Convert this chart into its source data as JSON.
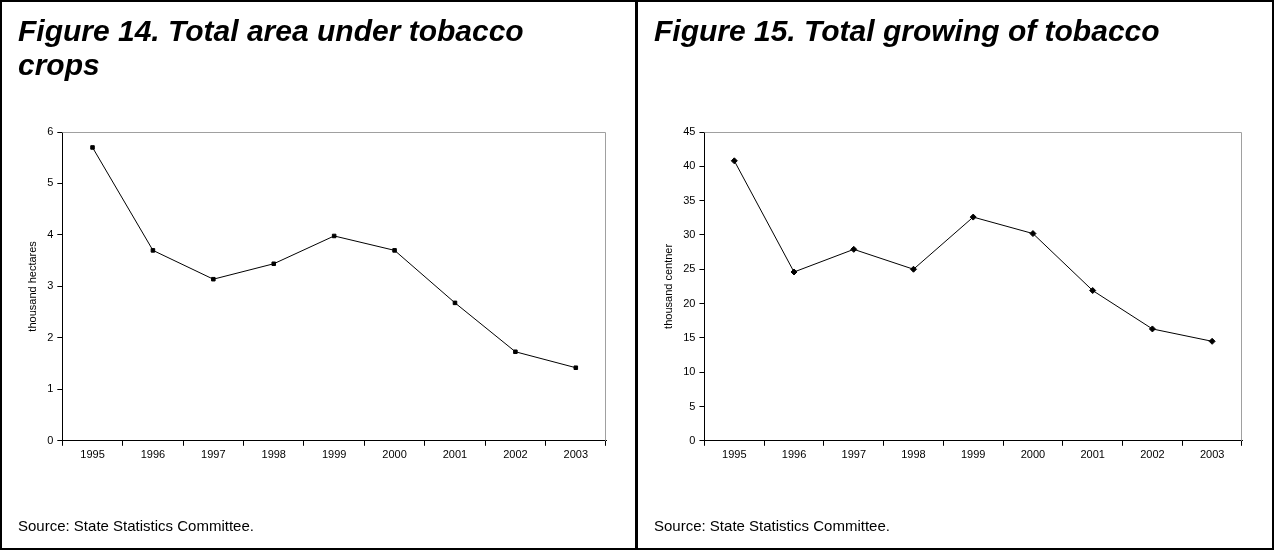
{
  "chart_data": [
    {
      "type": "line",
      "title": "Figure 14. Total area under tobacco crops",
      "ylabel": "thousand hectares",
      "categories": [
        "1995",
        "1996",
        "1997",
        "1998",
        "1999",
        "2000",
        "2001",
        "2002",
        "2003"
      ],
      "values": [
        5.7,
        3.7,
        3.14,
        3.44,
        3.98,
        3.7,
        2.68,
        1.73,
        1.42
      ],
      "color": "#000000",
      "marker": "square",
      "ylim": [
        0,
        6
      ],
      "yticks": [
        0,
        1,
        2,
        3,
        4,
        5,
        6
      ],
      "annotations": [
        "Source: State Statistics Committee."
      ]
    },
    {
      "type": "line",
      "title": "Figure 15. Total growing of tobacco",
      "ylabel": "thousand centner",
      "categories": [
        "1995",
        "1996",
        "1997",
        "1998",
        "1999",
        "2000",
        "2001",
        "2002",
        "2003"
      ],
      "values": [
        40.8,
        24.6,
        27.9,
        25.0,
        32.6,
        30.2,
        21.9,
        16.3,
        14.5
      ],
      "color": "#000000",
      "marker": "diamond",
      "ylim": [
        0,
        45
      ],
      "yticks": [
        0,
        5,
        10,
        15,
        20,
        25,
        30,
        35,
        40,
        45
      ],
      "annotations": [
        "Source: State Statistics Committee."
      ]
    }
  ]
}
